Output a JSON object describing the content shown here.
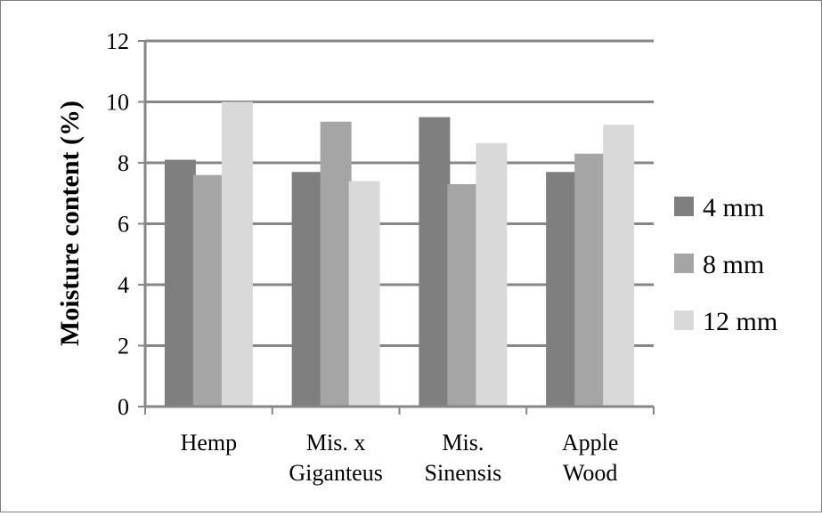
{
  "chart_data": {
    "type": "bar",
    "title": "",
    "xlabel": "",
    "ylabel": "Moisture content (%)",
    "ylim": [
      0,
      12
    ],
    "yticks": [
      "0",
      "2",
      "4",
      "6",
      "8",
      "10",
      "12"
    ],
    "grid": true,
    "legend_position": "right",
    "categories": [
      [
        "Hemp"
      ],
      [
        "Mis. x",
        "Giganteus"
      ],
      [
        "Mis.",
        "Sinensis"
      ],
      [
        "Apple",
        "Wood"
      ]
    ],
    "series": [
      {
        "name": "4 mm",
        "color": "#7f7f7f",
        "values": [
          8.1,
          7.7,
          9.5,
          7.7
        ]
      },
      {
        "name": "8 mm",
        "color": "#a5a5a5",
        "values": [
          7.6,
          9.35,
          7.3,
          8.3
        ]
      },
      {
        "name": "12 mm",
        "color": "#d9d9d9",
        "values": [
          10.0,
          7.4,
          8.65,
          9.25
        ]
      }
    ]
  }
}
